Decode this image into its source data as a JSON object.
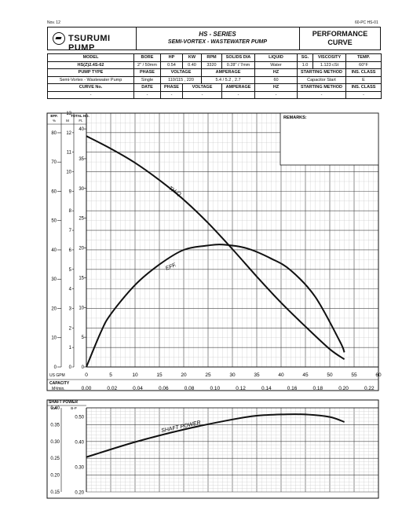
{
  "page": {
    "doc_date": "Nov. 12",
    "doc_code": "60-PC HS-01"
  },
  "header": {
    "brand": "TSURUMI PUMP",
    "series_title": "HS - SERIES",
    "series_subtitle": "SEMI-VORTEX - WASTEWATER PUMP",
    "perf_line1": "PERFORMANCE",
    "perf_line2": "CURVE"
  },
  "spec_table": {
    "rows": [
      [
        "MODEL",
        "BORE",
        "HP",
        "KW",
        "RPM",
        "SOLIDS DIA",
        "LIQUID",
        "SG.",
        "VISCOSITY",
        "TEMP."
      ],
      [
        "HS(Z)2.4S-62",
        "2\" / 50mm",
        "0.54",
        "0.40",
        "3320",
        "0.28\" / 7mm",
        "Water",
        "1.0",
        "1.123 cSt",
        "60°F"
      ],
      [
        "PUMP TYPE",
        "PHASE",
        "VOLTAGE",
        "AMPERAGE",
        "HZ",
        "STARTING METHOD",
        "INS. CLASS"
      ],
      [
        "Semi-Vortex - Wastewater Pump",
        "Single",
        "110/115 , 220",
        "5.4 / 5.2 , 2.7",
        "60",
        "Capacitor Start",
        "E"
      ],
      [
        "CURVE No.",
        "DATE",
        "PHASE",
        "VOLTAGE",
        "AMPERAGE",
        "HZ",
        "STARTING METHOD",
        "INS. CLASS"
      ],
      [
        "-",
        "-",
        "-",
        "-",
        "-",
        "-",
        "-",
        "-"
      ]
    ]
  },
  "chart_data": [
    {
      "type": "line",
      "title": "",
      "remarks_label": "REMARKS:",
      "x_label": "US GPM",
      "x_ticks": [
        0,
        5,
        10,
        15,
        20,
        25,
        30,
        35,
        40,
        45,
        50,
        55,
        60
      ],
      "xlim": [
        0,
        60
      ],
      "x2_label": "CAPACITY",
      "x2_unit": "M³/min.",
      "x2_ticks": [
        "0.00",
        "0.02",
        "0.04",
        "0.06",
        "0.08",
        "0.10",
        "0.12",
        "0.14",
        "0.16",
        "0.18",
        "0.20",
        "0.22"
      ],
      "x2_values": [
        0,
        0.02,
        0.04,
        0.06,
        0.08,
        0.1,
        0.12,
        0.14,
        0.16,
        0.18,
        0.2,
        0.22
      ],
      "eff_axis": {
        "label": "EFF.",
        "unit": "%",
        "ticks": [
          0,
          10,
          20,
          30,
          40,
          50,
          60,
          70,
          80
        ],
        "lim": [
          0,
          86.7
        ]
      },
      "head_m_axis": {
        "label": "TOTAL HD.",
        "unit": "M",
        "ticks": [
          0,
          1,
          2,
          3,
          4,
          5,
          6,
          7,
          8,
          9,
          10,
          11,
          12,
          13
        ],
        "lim": [
          0,
          13
        ]
      },
      "head_ft_axis": {
        "unit": "Ft.",
        "ticks": [
          0,
          5,
          10,
          15,
          20,
          25,
          30,
          35,
          40
        ],
        "lim": [
          0,
          42.65
        ]
      },
      "series": [
        {
          "name": "TH-Q",
          "axis": "head_ft",
          "x": [
            0,
            5,
            10,
            15,
            20,
            25,
            30,
            35,
            40,
            45,
            50,
            53
          ],
          "y": [
            38.8,
            36.7,
            34.3,
            31.4,
            28.1,
            24.2,
            19.8,
            15.2,
            10.8,
            6.8,
            3.0,
            1.3
          ]
        },
        {
          "name": "EFF.",
          "axis": "eff",
          "x": [
            0,
            3,
            5,
            10,
            15,
            20,
            25,
            28,
            33,
            38,
            42,
            47,
            52,
            53
          ],
          "y": [
            0,
            12,
            18,
            28,
            35,
            40,
            41.5,
            41.8,
            40.5,
            37,
            33,
            24,
            9,
            5
          ]
        }
      ]
    },
    {
      "type": "line",
      "title": "SHAFT POWER",
      "kw_axis": {
        "unit": "KW",
        "ticks": [
          "0.15",
          "0.20",
          "0.25",
          "0.30",
          "0.35",
          "0.40"
        ],
        "values": [
          0.15,
          0.2,
          0.25,
          0.3,
          0.35,
          0.4
        ],
        "lim": [
          0.15,
          0.4
        ]
      },
      "bhp_axis": {
        "unit": "B-P",
        "ticks": [
          "0.20",
          "0.30",
          "0.40",
          "0.50"
        ],
        "values": [
          0.2,
          0.3,
          0.4,
          0.5
        ]
      },
      "xlim": [
        0,
        60
      ],
      "series": [
        {
          "name": "SHAFT POWER",
          "axis": "bhp",
          "x": [
            0,
            10,
            20,
            30,
            35,
            40,
            45,
            50,
            53
          ],
          "y": [
            0.34,
            0.4,
            0.45,
            0.49,
            0.505,
            0.51,
            0.51,
            0.5,
            0.48
          ]
        }
      ]
    }
  ]
}
